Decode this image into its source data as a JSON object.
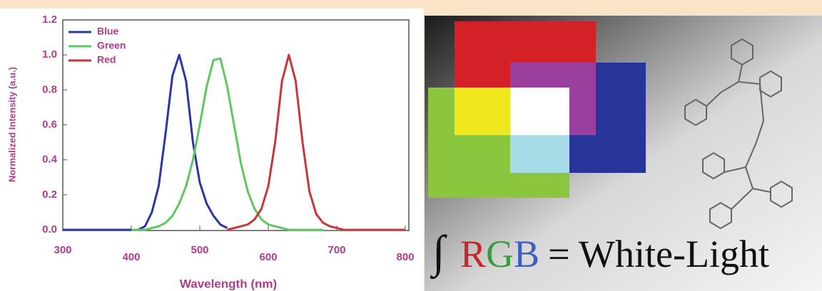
{
  "chart_data": {
    "type": "line",
    "x_label": "Wavelength (nm)",
    "y_label": "Normalized Intensity (a.u.)",
    "x": [
      300,
      310,
      320,
      330,
      340,
      350,
      360,
      370,
      380,
      390,
      400,
      410,
      420,
      430,
      440,
      450,
      460,
      470,
      480,
      490,
      500,
      510,
      520,
      530,
      540,
      550,
      560,
      570,
      580,
      590,
      600,
      610,
      620,
      630,
      640,
      650,
      660,
      670,
      680,
      690,
      700,
      710,
      720,
      730,
      740,
      750,
      760,
      770,
      780,
      790,
      800
    ],
    "series": [
      {
        "name": "Blue",
        "color": "#2b35a8",
        "values": [
          0,
          0,
          0,
          0,
          0,
          0,
          0,
          0,
          0,
          0,
          0,
          0,
          0.02,
          0.1,
          0.25,
          0.55,
          0.88,
          1.0,
          0.85,
          0.5,
          0.27,
          0.15,
          0.08,
          0.03,
          0.01,
          null,
          null,
          null,
          null,
          null,
          null,
          null,
          null,
          null,
          null,
          null,
          null,
          null,
          null,
          null,
          null,
          null,
          null,
          null,
          null,
          null,
          null,
          null,
          null,
          null,
          null
        ]
      },
      {
        "name": "Green",
        "color": "#5cc860",
        "values": [
          null,
          null,
          null,
          null,
          null,
          null,
          null,
          null,
          null,
          null,
          0,
          0,
          0,
          0.01,
          0.02,
          0.04,
          0.08,
          0.15,
          0.25,
          0.4,
          0.6,
          0.82,
          0.97,
          0.98,
          0.82,
          0.6,
          0.38,
          0.22,
          0.12,
          0.06,
          0.03,
          0.02,
          0.01,
          0,
          0,
          0,
          0,
          0,
          0,
          null,
          null,
          null,
          null,
          null,
          null,
          null,
          null,
          null,
          null,
          null,
          null
        ]
      },
      {
        "name": "Red",
        "color": "#c8363c",
        "values": [
          null,
          null,
          null,
          null,
          null,
          null,
          null,
          null,
          null,
          null,
          null,
          null,
          null,
          null,
          null,
          null,
          null,
          null,
          null,
          null,
          null,
          null,
          null,
          null,
          0,
          0.01,
          0.02,
          0.03,
          0.06,
          0.12,
          0.25,
          0.5,
          0.85,
          1.0,
          0.85,
          0.5,
          0.22,
          0.09,
          0.04,
          0.02,
          0.01,
          0,
          0,
          0,
          0,
          0,
          0,
          0,
          0,
          0,
          0
        ]
      }
    ],
    "xlim": [
      300,
      800
    ],
    "ylim": [
      0,
      1.2
    ],
    "xticks": [
      300,
      400,
      500,
      600,
      700,
      800
    ],
    "yticks": [
      {
        "value": 0,
        "label": "0.0"
      },
      0.2,
      0.4,
      0.6,
      0.8,
      {
        "value": 1,
        "label": "1.0"
      },
      1.2
    ],
    "legend": "upper-left"
  },
  "illustration": {
    "integral": "∫",
    "r": "R",
    "g": "G",
    "b": "B",
    "equation_rest": "= White-Light"
  }
}
